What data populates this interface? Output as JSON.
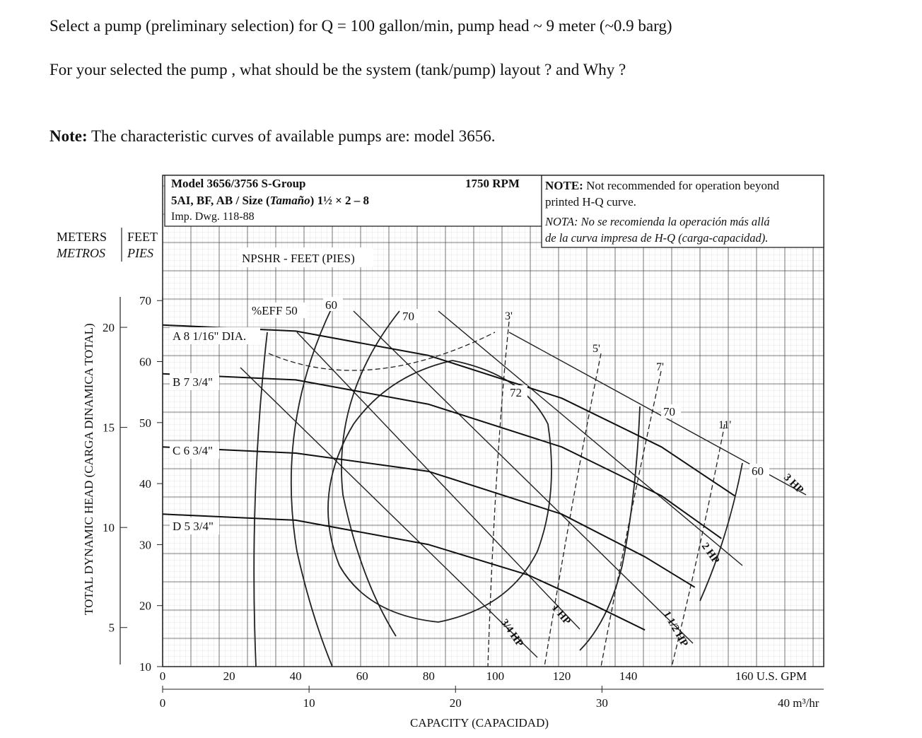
{
  "question_1": "Select a pump (preliminary selection) for Q = 100 gallon/min,  pump head ~ 9 meter  (~0.9 barg)",
  "question_2": "For your selected the pump , what should be the system (tank/pump) layout ? and Why  ?",
  "note_label": "Note:",
  "note_text": " The characteristic curves of available pumps are:   model 3656.",
  "chart_header": {
    "model": "Model 3656/3756 S-Group",
    "size_prefix": "5AI, BF, AB / Size (",
    "size_es": "Tamaño",
    "size_suffix": ") 1½ × 2 – 8",
    "drawing": "Imp. Dwg. 118-88",
    "rpm": "1750 RPM",
    "note_en_label": "NOTE:",
    "note_en_1": " Not recommended for operation beyond",
    "note_en_2": "printed H-Q curve.",
    "note_es_1": "NOTA: No se recomienda la operación más allá",
    "note_es_2": "de la curva impresa de H-Q (carga-capacidad)."
  },
  "axis_text": {
    "meters": "METERS",
    "metros": "METROS",
    "feet": "FEET",
    "pies": "PIES",
    "y_title": "TOTAL DYNAMIC HEAD (CARGA DINAMICA TOTAL)",
    "x_title": "CAPACITY (CAPACIDAD)",
    "gpm_unit": "160 U.S. GPM",
    "m3_unit": "40 m³/hr",
    "npsh_label": "NPSHR - FEET (PIES)",
    "eff_label": "%EFF 50"
  },
  "chart_data": {
    "type": "line",
    "title": "Model 3656/3756 S-Group 1750 RPM",
    "xlabel": "CAPACITY (CAPACIDAD)",
    "ylabel": "TOTAL DYNAMIC HEAD (CARGA DINAMICA TOTAL)",
    "x_unit": "U.S. GPM",
    "y_unit": "FEET",
    "xlim": [
      0,
      160
    ],
    "ylim": [
      10,
      70
    ],
    "x_ticks_gpm": [
      0,
      20,
      40,
      60,
      80,
      100,
      120,
      140
    ],
    "x_ticks_m3hr": [
      0,
      10,
      20,
      30
    ],
    "y_ticks_feet": [
      10,
      20,
      30,
      40,
      50,
      60,
      70
    ],
    "y_ticks_meters": [
      5,
      10,
      15,
      20
    ],
    "series": [
      {
        "name": "A 8 1/16\" DIA.",
        "x": [
          0,
          40,
          80,
          120,
          150,
          172
        ],
        "y": [
          66,
          65,
          61,
          54,
          46,
          38
        ]
      },
      {
        "name": "B 7 3/4\"",
        "x": [
          0,
          40,
          80,
          120,
          150,
          168
        ],
        "y": [
          58,
          57,
          53,
          46,
          38,
          31
        ]
      },
      {
        "name": "C 6 3/4\"",
        "x": [
          0,
          40,
          80,
          120,
          145,
          160
        ],
        "y": [
          46,
          45,
          42,
          35,
          28,
          23
        ]
      },
      {
        "name": "D 5 3/4\"",
        "x": [
          0,
          40,
          80,
          110,
          130,
          145
        ],
        "y": [
          35,
          34,
          30,
          25,
          20,
          16
        ]
      }
    ],
    "efficiency_labels": [
      "%EFF 50",
      "60",
      "70",
      "72",
      "70",
      "60"
    ],
    "npsh_labels": [
      "3'",
      "5'",
      "7'",
      "11'"
    ],
    "hp_labels": [
      "3/4 HP",
      "1 HP",
      "1 1/2 HP",
      "2 HP",
      "3 HP"
    ]
  }
}
